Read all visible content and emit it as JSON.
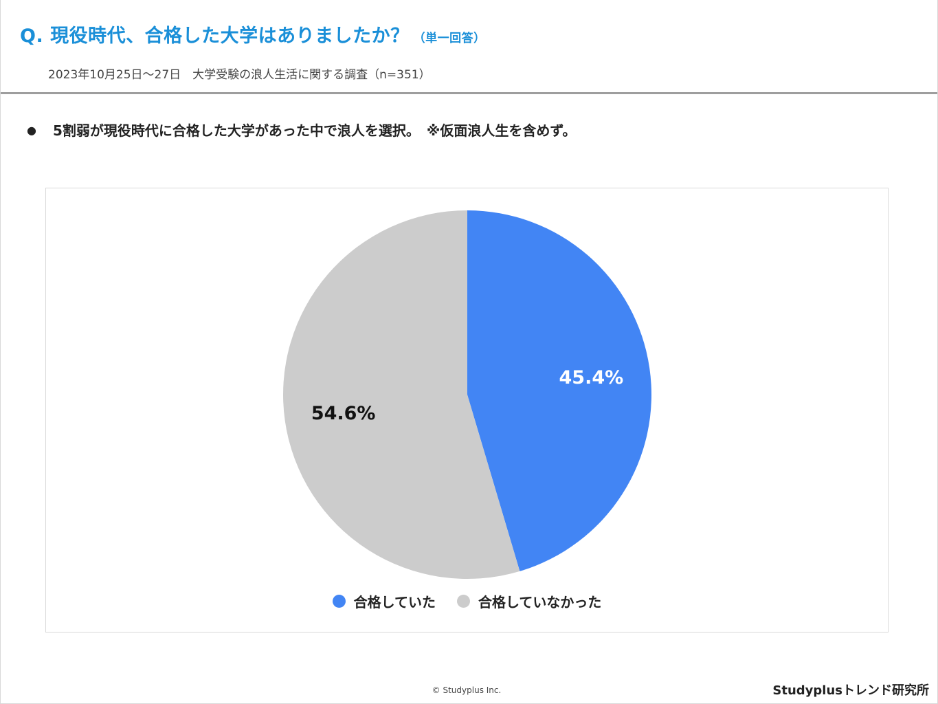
{
  "header": {
    "title": "Q. 現役時代、合格した大学はありましたか？",
    "title_note": "（単一回答）",
    "subtitle": "2023年10月25日〜27日　大学受験の浪人生活に関する調査（n=351）"
  },
  "summary": {
    "bullet": "●",
    "text": "5割弱が現役時代に合格した大学があった中で浪人を選択。　※仮面浪人生を含めず。"
  },
  "chart_data": {
    "type": "pie",
    "title": "",
    "slices": [
      {
        "label": "合格していた",
        "value": 45.4,
        "display": "45.4%",
        "color": "#4285f4",
        "label_color": "#ffffff"
      },
      {
        "label": "合格していなかった",
        "value": 54.6,
        "display": "54.6%",
        "color": "#cccccc",
        "label_color": "#111111"
      }
    ],
    "start_angle": "12 o'clock, clockwise",
    "legend_position": "bottom"
  },
  "footer": {
    "copyright": "© Studyplus Inc.",
    "brand": "Studyplusトレンド研究所"
  }
}
